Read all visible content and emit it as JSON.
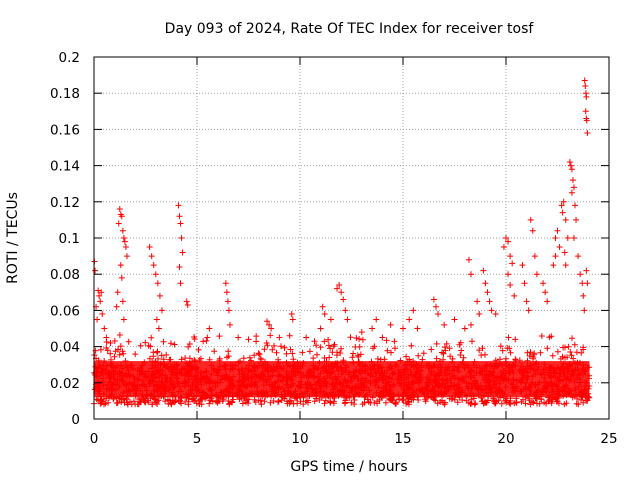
{
  "chart_data": {
    "type": "scatter",
    "title": "Day 093 of 2024, Rate Of TEC Index for receiver tosf",
    "xlabel": "GPS time / hours",
    "ylabel": "ROTI / TECUs",
    "xlim": [
      0,
      25
    ],
    "ylim": [
      0,
      0.2
    ],
    "xticks": [
      0,
      5,
      10,
      15,
      20,
      25
    ],
    "xtick_labels": [
      "0",
      "5",
      "10",
      "15",
      "20",
      "25"
    ],
    "yticks": [
      0,
      0.02,
      0.04,
      0.06,
      0.08,
      0.1,
      0.12,
      0.14,
      0.16,
      0.18,
      0.2
    ],
    "ytick_labels": [
      "0",
      "0.02",
      "0.04",
      "0.06",
      "0.08",
      "0.1",
      "0.12",
      "0.14",
      "0.16",
      "0.18",
      "0.2"
    ],
    "grid": true,
    "marker": "+",
    "color": "#ff0000",
    "series": [
      {
        "name": "ROTI",
        "points": [
          [
            0.02,
            0.087
          ],
          [
            0.05,
            0.082
          ],
          [
            0.1,
            0.062
          ],
          [
            0.15,
            0.055
          ],
          [
            0.2,
            0.071
          ],
          [
            0.25,
            0.068
          ],
          [
            0.3,
            0.065
          ],
          [
            0.35,
            0.07
          ],
          [
            0.4,
            0.058
          ],
          [
            0.5,
            0.05
          ],
          [
            0.6,
            0.045
          ],
          [
            0.8,
            0.042
          ],
          [
            1.1,
            0.062
          ],
          [
            1.15,
            0.07
          ],
          [
            1.2,
            0.108
          ],
          [
            1.25,
            0.116
          ],
          [
            1.3,
            0.113
          ],
          [
            1.35,
            0.112
          ],
          [
            1.4,
            0.104
          ],
          [
            1.45,
            0.1
          ],
          [
            1.5,
            0.098
          ],
          [
            1.55,
            0.095
          ],
          [
            1.6,
            0.09
          ],
          [
            1.3,
            0.085
          ],
          [
            1.35,
            0.078
          ],
          [
            1.4,
            0.065
          ],
          [
            1.45,
            0.055
          ],
          [
            2.7,
            0.095
          ],
          [
            2.8,
            0.09
          ],
          [
            2.9,
            0.085
          ],
          [
            3.0,
            0.08
          ],
          [
            3.1,
            0.075
          ],
          [
            3.2,
            0.068
          ],
          [
            3.3,
            0.06
          ],
          [
            3.05,
            0.055
          ],
          [
            3.15,
            0.05
          ],
          [
            4.1,
            0.118
          ],
          [
            4.15,
            0.112
          ],
          [
            4.2,
            0.108
          ],
          [
            4.25,
            0.1
          ],
          [
            4.3,
            0.092
          ],
          [
            4.15,
            0.084
          ],
          [
            4.2,
            0.075
          ],
          [
            4.5,
            0.065
          ],
          [
            4.55,
            0.063
          ],
          [
            5.5,
            0.045
          ],
          [
            5.6,
            0.05
          ],
          [
            6.4,
            0.075
          ],
          [
            6.45,
            0.07
          ],
          [
            6.5,
            0.065
          ],
          [
            6.55,
            0.06
          ],
          [
            6.6,
            0.052
          ],
          [
            7.0,
            0.045
          ],
          [
            7.5,
            0.044
          ],
          [
            8.4,
            0.054
          ],
          [
            8.5,
            0.052
          ],
          [
            8.6,
            0.05
          ],
          [
            9.0,
            0.045
          ],
          [
            9.5,
            0.046
          ],
          [
            9.6,
            0.058
          ],
          [
            9.65,
            0.055
          ],
          [
            10.3,
            0.045
          ],
          [
            11.0,
            0.05
          ],
          [
            11.1,
            0.062
          ],
          [
            11.2,
            0.058
          ],
          [
            11.5,
            0.055
          ],
          [
            11.8,
            0.072
          ],
          [
            11.9,
            0.074
          ],
          [
            12.0,
            0.07
          ],
          [
            12.1,
            0.066
          ],
          [
            12.2,
            0.06
          ],
          [
            12.3,
            0.055
          ],
          [
            13.0,
            0.048
          ],
          [
            13.5,
            0.05
          ],
          [
            13.7,
            0.055
          ],
          [
            14.0,
            0.045
          ],
          [
            14.4,
            0.052
          ],
          [
            15.0,
            0.05
          ],
          [
            15.3,
            0.055
          ],
          [
            15.5,
            0.06
          ],
          [
            15.7,
            0.05
          ],
          [
            16.5,
            0.066
          ],
          [
            16.6,
            0.062
          ],
          [
            16.7,
            0.058
          ],
          [
            17.0,
            0.052
          ],
          [
            17.5,
            0.055
          ],
          [
            18.0,
            0.05
          ],
          [
            18.3,
            0.052
          ],
          [
            18.6,
            0.065
          ],
          [
            18.7,
            0.058
          ],
          [
            18.2,
            0.088
          ],
          [
            18.3,
            0.08
          ],
          [
            18.9,
            0.082
          ],
          [
            19.0,
            0.075
          ],
          [
            19.1,
            0.07
          ],
          [
            19.2,
            0.065
          ],
          [
            19.3,
            0.06
          ],
          [
            19.5,
            0.058
          ],
          [
            19.9,
            0.095
          ],
          [
            20.0,
            0.1
          ],
          [
            20.1,
            0.098
          ],
          [
            20.2,
            0.09
          ],
          [
            20.3,
            0.086
          ],
          [
            20.1,
            0.08
          ],
          [
            20.2,
            0.074
          ],
          [
            20.4,
            0.068
          ],
          [
            20.8,
            0.085
          ],
          [
            20.9,
            0.075
          ],
          [
            21.0,
            0.065
          ],
          [
            21.1,
            0.06
          ],
          [
            21.2,
            0.11
          ],
          [
            21.3,
            0.104
          ],
          [
            21.4,
            0.09
          ],
          [
            21.5,
            0.08
          ],
          [
            21.8,
            0.075
          ],
          [
            21.9,
            0.07
          ],
          [
            22.0,
            0.065
          ],
          [
            22.3,
            0.085
          ],
          [
            22.4,
            0.1
          ],
          [
            22.5,
            0.104
          ],
          [
            22.6,
            0.095
          ],
          [
            22.4,
            0.09
          ],
          [
            22.7,
            0.118
          ],
          [
            22.75,
            0.114
          ],
          [
            22.8,
            0.12
          ],
          [
            22.9,
            0.11
          ],
          [
            23.0,
            0.1
          ],
          [
            22.85,
            0.092
          ],
          [
            22.9,
            0.085
          ],
          [
            23.1,
            0.142
          ],
          [
            23.15,
            0.14
          ],
          [
            23.2,
            0.138
          ],
          [
            23.25,
            0.132
          ],
          [
            23.3,
            0.128
          ],
          [
            23.2,
            0.125
          ],
          [
            23.35,
            0.118
          ],
          [
            23.4,
            0.11
          ],
          [
            23.3,
            0.1
          ],
          [
            23.5,
            0.09
          ],
          [
            23.6,
            0.08
          ],
          [
            23.7,
            0.075
          ],
          [
            23.75,
            0.068
          ],
          [
            23.8,
            0.06
          ],
          [
            23.82,
            0.187
          ],
          [
            23.85,
            0.184
          ],
          [
            23.88,
            0.18
          ],
          [
            23.9,
            0.178
          ],
          [
            23.87,
            0.17
          ],
          [
            23.9,
            0.166
          ],
          [
            23.92,
            0.165
          ],
          [
            23.95,
            0.158
          ],
          [
            23.9,
            0.082
          ],
          [
            23.95,
            0.075
          ]
        ]
      }
    ]
  }
}
